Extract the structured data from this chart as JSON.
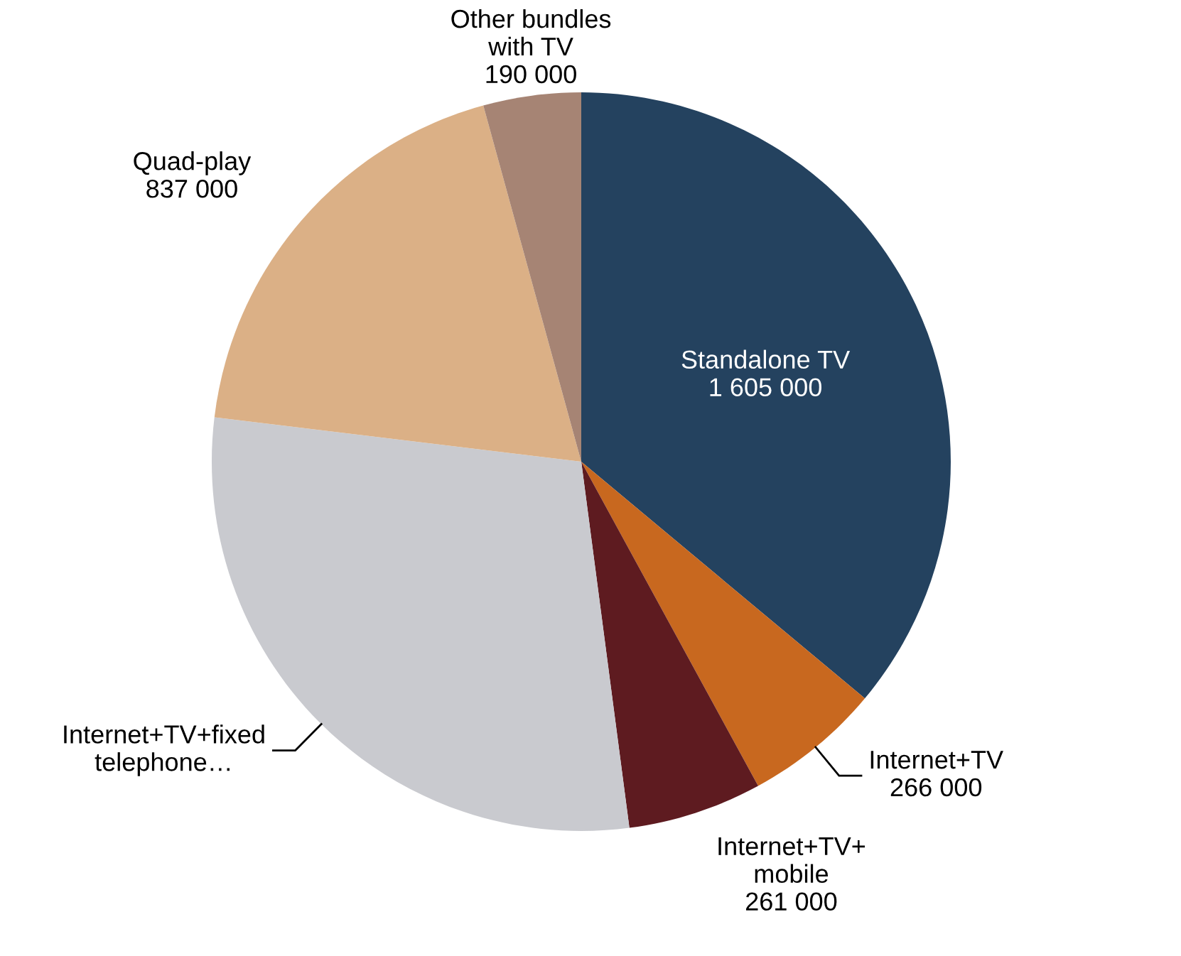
{
  "chart_data": {
    "type": "pie",
    "categories": [
      "Standalone TV",
      "Internet+TV",
      "Internet+TV+\nmobile",
      "Internet+TV+fixed\ntelephone…",
      "Quad-play",
      "Other bundles\nwith TV"
    ],
    "values": [
      1605000,
      266000,
      261000,
      1290000,
      837000,
      190000
    ],
    "value_labels": [
      "1 605 000",
      "266 000",
      "261 000",
      null,
      "837 000",
      "190 000"
    ],
    "colors": [
      "#24425f",
      "#c8681f",
      "#5e1b20",
      "#c9cacf",
      "#dbb086",
      "#a68474"
    ],
    "legend": false
  }
}
